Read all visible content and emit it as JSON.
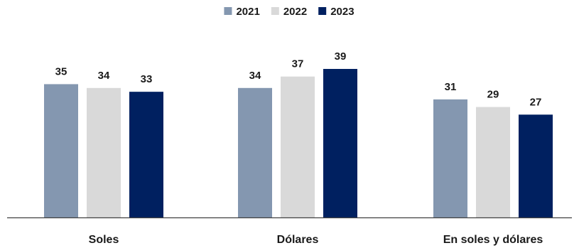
{
  "chart_data": {
    "type": "bar",
    "categories": [
      "Soles",
      "Dólares",
      "En soles y dólares"
    ],
    "series": [
      {
        "name": "2021",
        "color": "#8497b0",
        "values": [
          35,
          34,
          31
        ]
      },
      {
        "name": "2022",
        "color": "#d9d9d9",
        "values": [
          34,
          37,
          29
        ]
      },
      {
        "name": "2023",
        "color": "#002060",
        "values": [
          33,
          39,
          27
        ]
      }
    ],
    "title": "",
    "xlabel": "",
    "ylabel": "",
    "ylim": [
      0,
      46
    ],
    "grid": false,
    "legend": "top-center",
    "data_labels": true
  }
}
